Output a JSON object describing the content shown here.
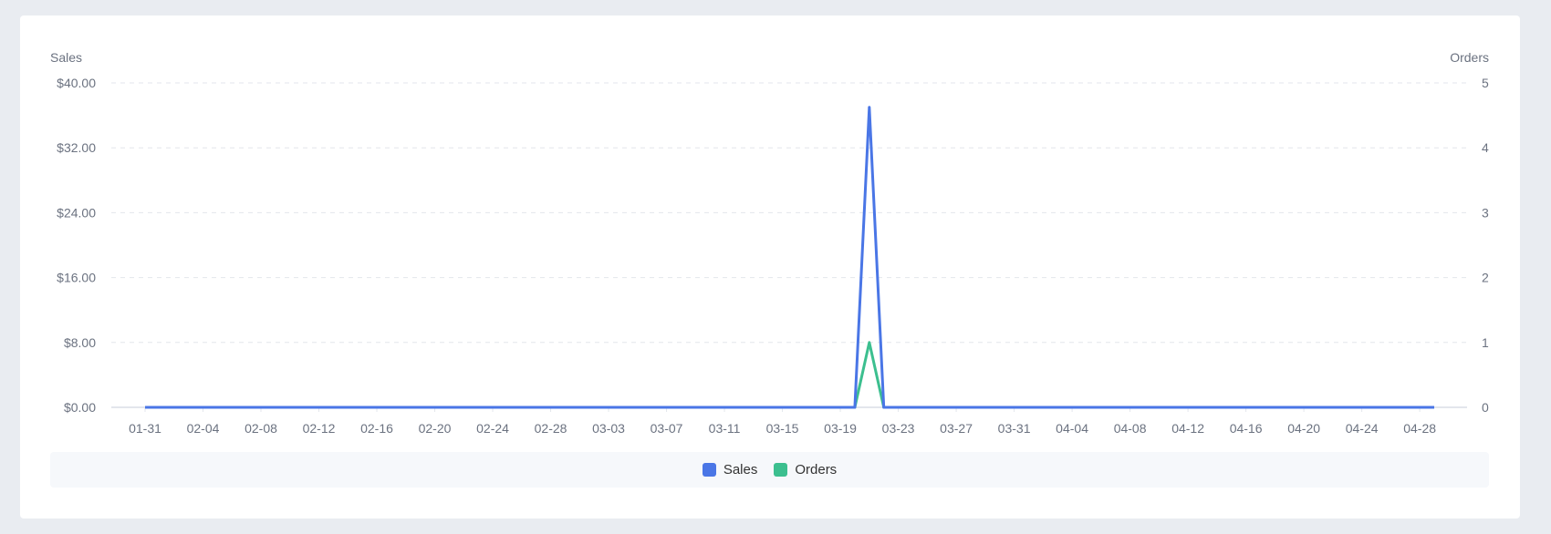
{
  "chart_data": {
    "type": "line",
    "y_left_label": "Sales",
    "y_right_label": "Orders",
    "y_left_ticks": [
      "$0.00",
      "$8.00",
      "$16.00",
      "$24.00",
      "$32.00",
      "$40.00"
    ],
    "y_right_ticks": [
      "0",
      "1",
      "2",
      "3",
      "4",
      "5"
    ],
    "y_left_range": [
      0,
      40
    ],
    "y_right_range": [
      0,
      5
    ],
    "x_tick_labels": [
      "01-31",
      "02-04",
      "02-08",
      "02-12",
      "02-16",
      "02-20",
      "02-24",
      "02-28",
      "03-03",
      "03-07",
      "03-11",
      "03-15",
      "03-19",
      "03-23",
      "03-27",
      "03-31",
      "04-04",
      "04-08",
      "04-12",
      "04-16",
      "04-20",
      "04-24",
      "04-28"
    ],
    "x_range": [
      "01-31",
      "04-29"
    ],
    "grid": "horizontal dashed",
    "legend_placement": "bottom",
    "series": [
      {
        "name": "Sales",
        "axis": "left",
        "color": "#4a76e6",
        "nonzero": {
          "03-21": 37
        },
        "default": 0
      },
      {
        "name": "Orders",
        "axis": "right",
        "color": "#3cbf8f",
        "nonzero": {
          "03-21": 1
        },
        "default": 0
      }
    ]
  }
}
